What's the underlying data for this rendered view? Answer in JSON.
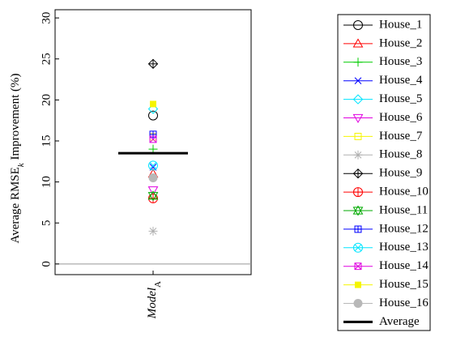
{
  "chart_data": {
    "type": "strip",
    "y_label_parts": [
      "Average RMSE",
      "k",
      " Improvement (%)"
    ],
    "categories": [
      [
        "Model",
        "A"
      ]
    ],
    "ylim": [
      -1.3,
      31
    ],
    "yticks": [
      0,
      5,
      10,
      15,
      20,
      25,
      30
    ],
    "reference_line": 0,
    "reference_color": "#999999",
    "series": [
      {
        "name": "House_1",
        "color": "#000000",
        "marker": "circle",
        "values": [
          18.1
        ]
      },
      {
        "name": "House_2",
        "color": "#ff0000",
        "marker": "triangle-up",
        "values": [
          11
        ]
      },
      {
        "name": "House_3",
        "color": "#00cc00",
        "marker": "plus",
        "values": [
          14
        ]
      },
      {
        "name": "House_4",
        "color": "#0000ff",
        "marker": "x",
        "values": [
          11.8
        ]
      },
      {
        "name": "House_5",
        "color": "#00e5ff",
        "marker": "diamond",
        "values": [
          18.9
        ]
      },
      {
        "name": "House_6",
        "color": "#e000e0",
        "marker": "triangle-down",
        "values": [
          9
        ]
      },
      {
        "name": "House_7",
        "color": "#f5f500",
        "marker": "square",
        "values": [
          15.5
        ]
      },
      {
        "name": "House_8",
        "color": "#b0b0b0",
        "marker": "asterisk",
        "values": [
          4
        ]
      },
      {
        "name": "House_9",
        "color": "#000000",
        "marker": "diamond-plus",
        "values": [
          24.4
        ]
      },
      {
        "name": "House_10",
        "color": "#ff0000",
        "marker": "circle-plus",
        "values": [
          8
        ]
      },
      {
        "name": "House_11",
        "color": "#00aa00",
        "marker": "star",
        "values": [
          8.3
        ]
      },
      {
        "name": "House_12",
        "color": "#0000ff",
        "marker": "square-plus",
        "values": [
          15.8
        ]
      },
      {
        "name": "House_13",
        "color": "#00e5ff",
        "marker": "circle-x",
        "values": [
          12
        ]
      },
      {
        "name": "House_14",
        "color": "#e000e0",
        "marker": "square-x",
        "values": [
          15.2
        ]
      },
      {
        "name": "House_15",
        "color": "#f5f500",
        "marker": "square-filled",
        "values": [
          19.5
        ]
      },
      {
        "name": "House_16",
        "color": "#b8b8b8",
        "marker": "circle-filled",
        "values": [
          10.5
        ]
      }
    ],
    "average": {
      "name": "Average",
      "color": "#000000",
      "values": [
        13.5
      ]
    }
  }
}
